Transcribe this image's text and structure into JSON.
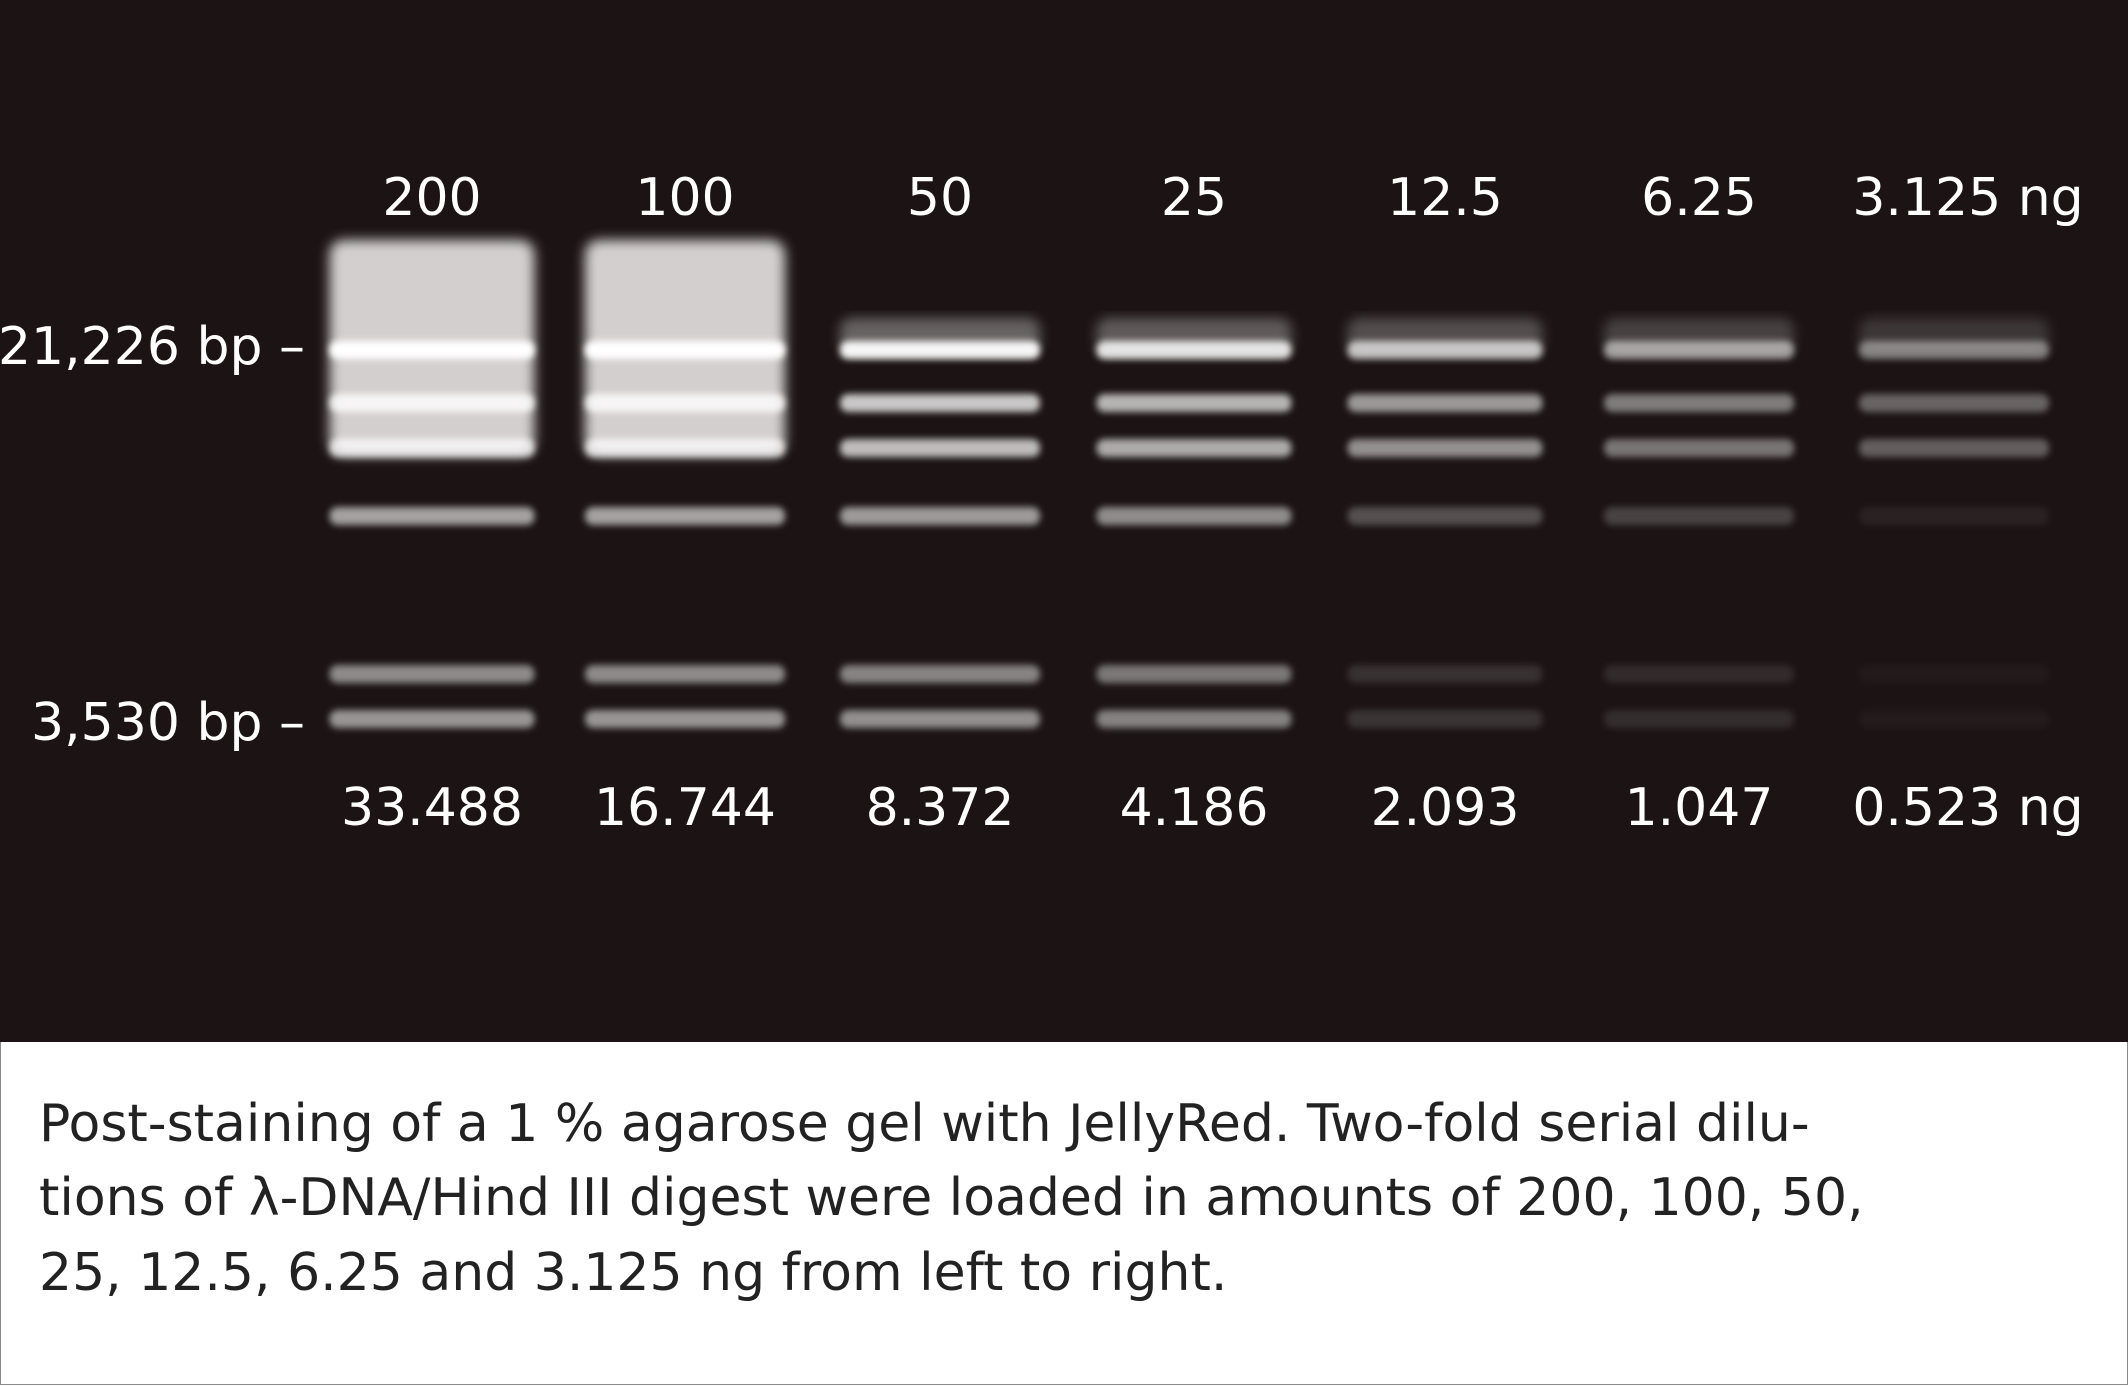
{
  "gel": {
    "lane_amounts": [
      "200",
      "100",
      "50",
      "25",
      "12.5",
      "6.25",
      "3.125 ng"
    ],
    "band_amounts": [
      "33.488",
      "16.744",
      "8.372",
      "4.186",
      "2.093",
      "1.047",
      "0.523 ng"
    ],
    "markers": [
      "21,226 bp –",
      "3,530 bp –"
    ]
  },
  "caption": {
    "lines": [
      "Post-staining of a 1 % agarose gel with JellyRed. Two-fold serial dilu-",
      "tions of λ-DNA/Hind III digest were loaded in amounts of 200, 100, 50,",
      "25, 12.5, 6.25 and 3.125 ng from left to right."
    ]
  }
}
